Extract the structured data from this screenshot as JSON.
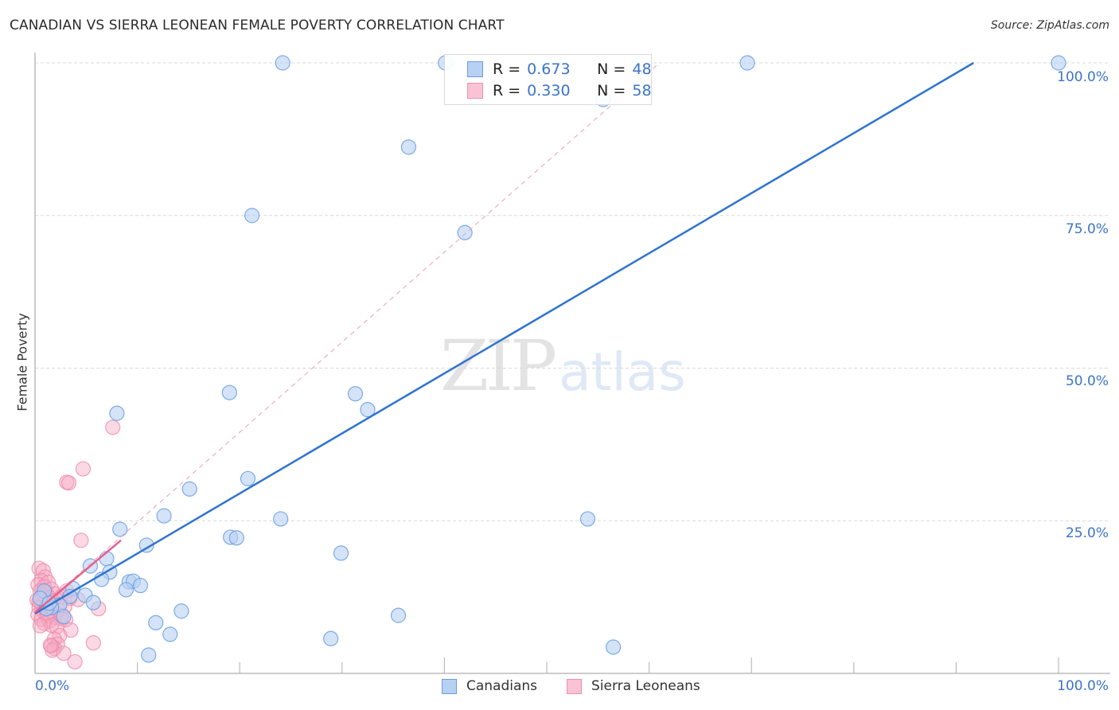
{
  "header": {
    "title": "CANADIAN VS SIERRA LEONEAN FEMALE POVERTY CORRELATION CHART",
    "source": "Source: ZipAtlas.com"
  },
  "axes": {
    "ylabel": "Female Poverty",
    "x_ticks": [
      "0.0%",
      "100.0%"
    ],
    "y_ticks": [
      "100.0%",
      "75.0%",
      "50.0%",
      "25.0%"
    ]
  },
  "legend_top": {
    "rows": [
      {
        "r_label": "R =",
        "r_value": "0.673",
        "n_label": "N =",
        "n_value": "48",
        "color": "#b7d1f3",
        "border": "#6a9de0"
      },
      {
        "r_label": "R =",
        "r_value": "0.330",
        "n_label": "N =",
        "n_value": "58",
        "color": "#f9c3d5",
        "border": "#ee90b0"
      }
    ]
  },
  "legend_bottom": {
    "items": [
      {
        "label": "Canadians",
        "color": "#b7d1f3",
        "border": "#6a9de0"
      },
      {
        "label": "Sierra Leoneans",
        "color": "#f9c3d5",
        "border": "#ee90b0"
      }
    ]
  },
  "watermark": {
    "zip": "ZIP",
    "atlas": "atlas"
  },
  "colors": {
    "canadians_fill": "rgba(183,209,243,0.6)",
    "canadians_stroke": "#6a9de0",
    "canadians_line": "#2f74d0",
    "sierra_fill": "rgba(246,170,196,0.45)",
    "sierra_stroke": "#ec8aab",
    "sierra_line": "#e5608c",
    "axis_label": "#3b73c9"
  },
  "chart_data": {
    "type": "scatter",
    "title": "CANADIAN VS SIERRA LEONEAN FEMALE POVERTY CORRELATION CHART",
    "xlabel": "",
    "ylabel": "Female Poverty",
    "xlim": [
      0,
      100
    ],
    "ylim": [
      0,
      100
    ],
    "x_tick_labels": [
      "0.0%",
      "100.0%"
    ],
    "y_tick_labels": [
      "25.0%",
      "50.0%",
      "75.0%",
      "100.0%"
    ],
    "grid": true,
    "legend_position": "bottom",
    "series": [
      {
        "name": "Canadians",
        "R": 0.673,
        "N": 48,
        "trendline": {
          "x": [
            0,
            91.7
          ],
          "y": [
            9.8,
            100
          ]
        },
        "points": [
          [
            24.2,
            100
          ],
          [
            40.1,
            100
          ],
          [
            69.6,
            100
          ],
          [
            100,
            100
          ],
          [
            55.5,
            94.0
          ],
          [
            36.5,
            86.2
          ],
          [
            21.2,
            75.0
          ],
          [
            42.0,
            72.2
          ],
          [
            19.0,
            46.0
          ],
          [
            31.3,
            45.8
          ],
          [
            32.5,
            43.2
          ],
          [
            8.0,
            42.6
          ],
          [
            20.8,
            31.9
          ],
          [
            15.1,
            30.2
          ],
          [
            12.6,
            25.8
          ],
          [
            24.0,
            25.3
          ],
          [
            54.0,
            25.3
          ],
          [
            8.3,
            23.6
          ],
          [
            19.1,
            22.3
          ],
          [
            19.7,
            22.2
          ],
          [
            10.9,
            21.0
          ],
          [
            29.9,
            19.7
          ],
          [
            7.0,
            18.8
          ],
          [
            5.4,
            17.6
          ],
          [
            7.3,
            16.6
          ],
          [
            6.5,
            15.4
          ],
          [
            9.2,
            15.0
          ],
          [
            9.6,
            15.1
          ],
          [
            10.3,
            14.4
          ],
          [
            8.9,
            13.7
          ],
          [
            3.7,
            13.9
          ],
          [
            4.9,
            12.8
          ],
          [
            3.4,
            12.6
          ],
          [
            5.7,
            11.6
          ],
          [
            2.4,
            11.2
          ],
          [
            1.6,
            10.8
          ],
          [
            1.1,
            10.6
          ],
          [
            2.8,
            9.3
          ],
          [
            35.5,
            9.5
          ],
          [
            14.3,
            10.2
          ],
          [
            11.8,
            8.3
          ],
          [
            13.2,
            6.4
          ],
          [
            28.9,
            5.7
          ],
          [
            11.1,
            3.0
          ],
          [
            56.5,
            4.3
          ],
          [
            0.9,
            13.5
          ],
          [
            0.5,
            12.3
          ],
          [
            1.4,
            11.5
          ]
        ]
      },
      {
        "name": "Sierra Leoneans",
        "R": 0.33,
        "N": 58,
        "trendline": {
          "x": [
            0,
            8.4
          ],
          "y": [
            10.0,
            21.8
          ]
        },
        "trendline_extended_dashed": {
          "x": [
            0,
            61
          ],
          "y": [
            10.0,
            100
          ]
        },
        "points": [
          [
            7.6,
            40.3
          ],
          [
            4.7,
            33.5
          ],
          [
            3.1,
            31.3
          ],
          [
            3.3,
            31.2
          ],
          [
            4.5,
            21.8
          ],
          [
            0.4,
            17.2
          ],
          [
            0.8,
            16.8
          ],
          [
            1.0,
            15.8
          ],
          [
            0.6,
            15.2
          ],
          [
            1.3,
            14.9
          ],
          [
            0.3,
            14.5
          ],
          [
            0.9,
            14.2
          ],
          [
            1.6,
            13.8
          ],
          [
            0.5,
            13.5
          ],
          [
            1.1,
            13.2
          ],
          [
            2.0,
            13.0
          ],
          [
            0.7,
            12.8
          ],
          [
            1.4,
            12.4
          ],
          [
            0.2,
            12.0
          ],
          [
            2.6,
            12.6
          ],
          [
            1.8,
            11.8
          ],
          [
            0.9,
            11.5
          ],
          [
            1.2,
            11.2
          ],
          [
            3.4,
            12.3
          ],
          [
            0.4,
            10.8
          ],
          [
            1.7,
            10.6
          ],
          [
            2.3,
            10.4
          ],
          [
            0.8,
            10.2
          ],
          [
            1.5,
            9.9
          ],
          [
            2.9,
            10.9
          ],
          [
            0.3,
            9.6
          ],
          [
            1.1,
            9.4
          ],
          [
            1.9,
            9.2
          ],
          [
            2.5,
            9.0
          ],
          [
            0.6,
            8.9
          ],
          [
            1.4,
            8.6
          ],
          [
            3.0,
            8.8
          ],
          [
            0.9,
            8.2
          ],
          [
            1.6,
            7.9
          ],
          [
            0.5,
            7.8
          ],
          [
            2.1,
            7.6
          ],
          [
            3.5,
            7.1
          ],
          [
            6.2,
            10.6
          ],
          [
            2.4,
            6.2
          ],
          [
            1.9,
            5.6
          ],
          [
            2.2,
            4.8
          ],
          [
            1.6,
            4.5
          ],
          [
            1.9,
            4.1
          ],
          [
            1.7,
            3.8
          ],
          [
            1.5,
            4.6
          ],
          [
            5.7,
            5.0
          ],
          [
            2.8,
            3.3
          ],
          [
            3.9,
            1.9
          ],
          [
            4.2,
            12.1
          ],
          [
            3.1,
            13.5
          ],
          [
            1.2,
            9.9
          ],
          [
            2.6,
            9.5
          ],
          [
            0.4,
            11.8
          ]
        ]
      }
    ]
  }
}
